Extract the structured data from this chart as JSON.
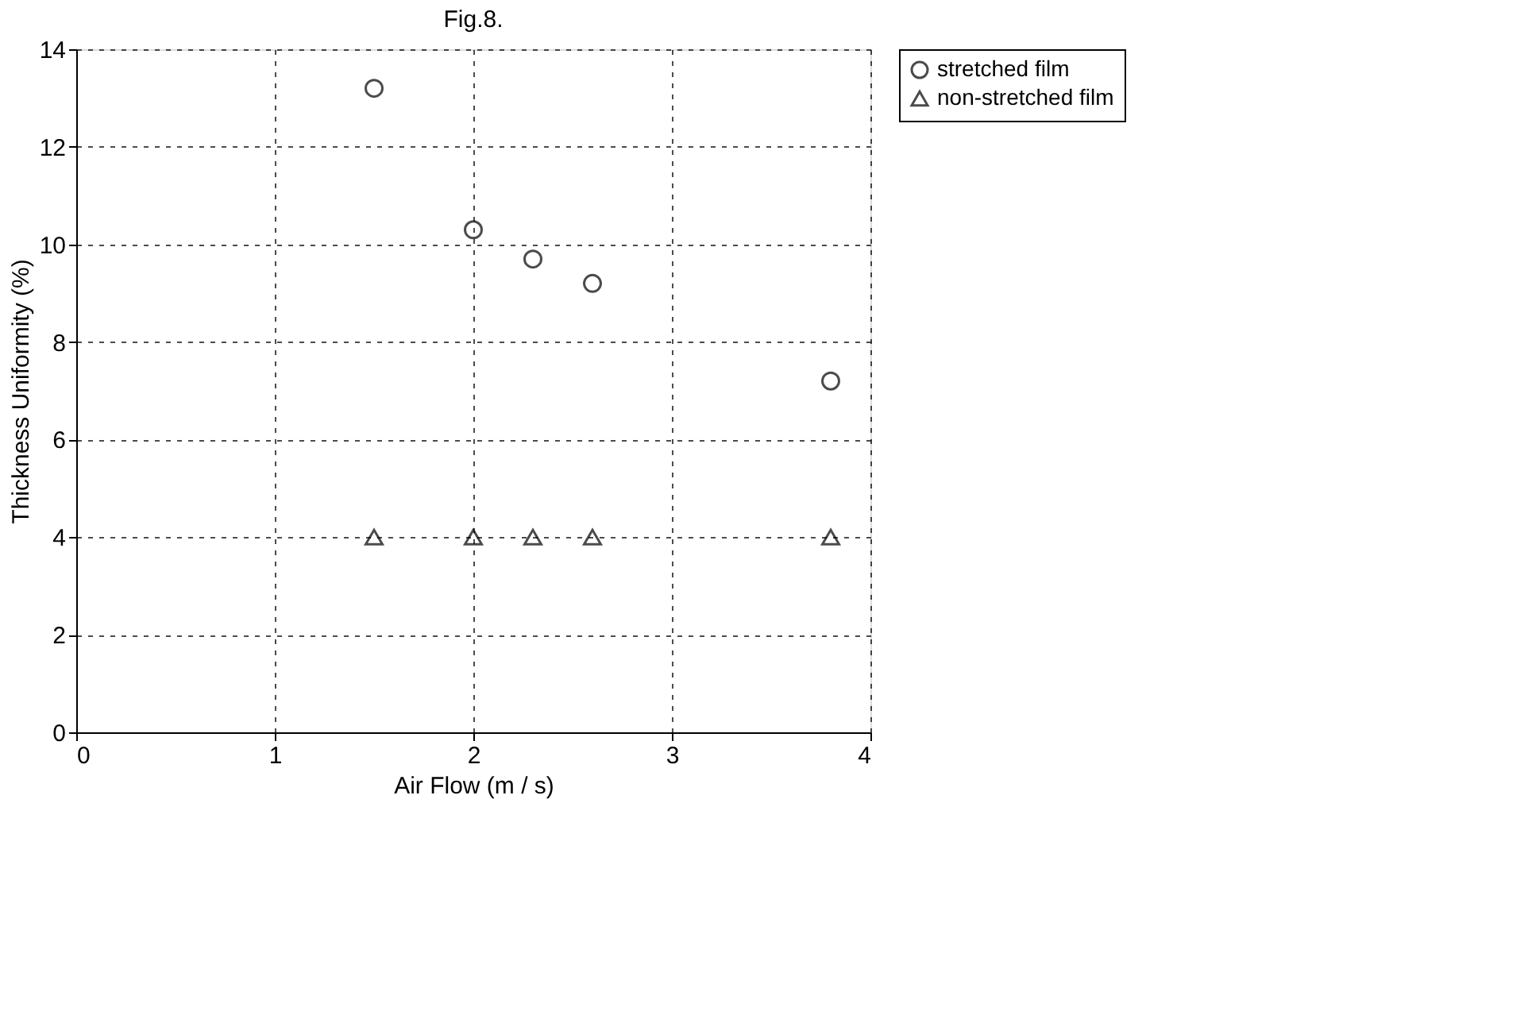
{
  "chart_data": {
    "type": "scatter",
    "title": "Fig.8.",
    "xlabel": "Air Flow  (m / s)",
    "ylabel": "Thickness Uniformity  (%)",
    "x": [
      1.5,
      2.0,
      2.3,
      2.6,
      3.8
    ],
    "series": [
      {
        "name": "stretched film",
        "color": "#000000",
        "marker": "circle",
        "values": [
          13.2,
          10.3,
          9.7,
          9.2,
          7.2
        ]
      },
      {
        "name": "non-stretched film",
        "color": "#000000",
        "marker": "triangle",
        "values": [
          4.0,
          4.0,
          4.0,
          4.0,
          4.0
        ]
      }
    ],
    "xlim": [
      0,
      4
    ],
    "xticks": [
      0,
      1,
      2,
      3,
      4
    ],
    "ylim": [
      0,
      14
    ],
    "yticks": [
      0,
      2,
      4,
      6,
      8,
      10,
      12,
      14
    ],
    "grid": true,
    "legend": "top right"
  }
}
